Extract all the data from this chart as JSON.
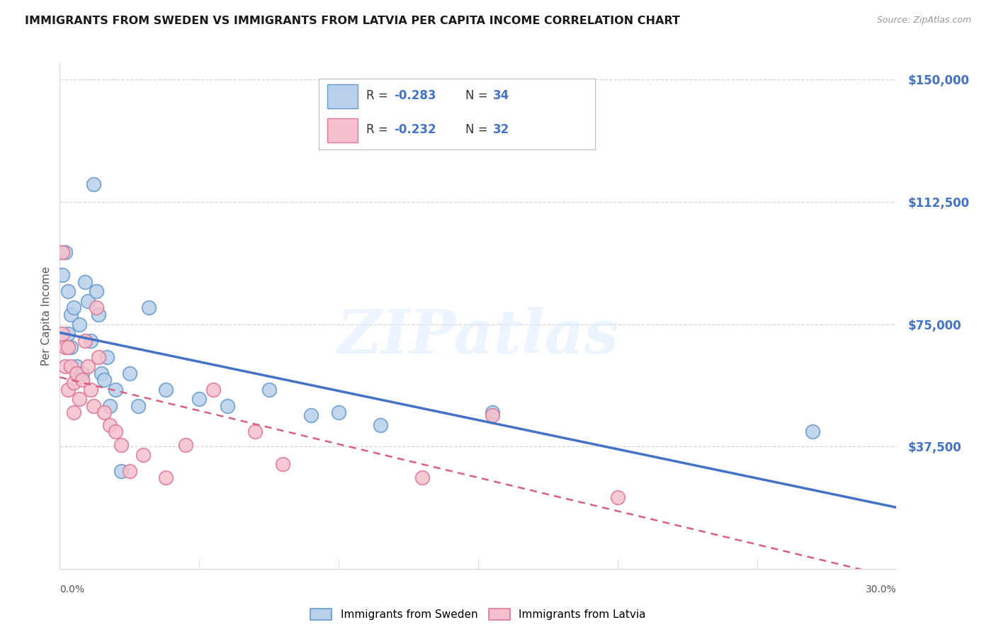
{
  "title": "IMMIGRANTS FROM SWEDEN VS IMMIGRANTS FROM LATVIA PER CAPITA INCOME CORRELATION CHART",
  "source": "Source: ZipAtlas.com",
  "ylabel": "Per Capita Income",
  "yticks": [
    0,
    37500,
    75000,
    112500,
    150000
  ],
  "ytick_labels": [
    "",
    "$37,500",
    "$75,000",
    "$112,500",
    "$150,000"
  ],
  "xmin": 0.0,
  "xmax": 0.3,
  "ymin": 0,
  "ymax": 155000,
  "sweden_face": "#b8d0ea",
  "sweden_edge": "#6699cc",
  "latvia_face": "#f5c0cc",
  "latvia_edge": "#dd7799",
  "sweden_line_color": "#4472c4",
  "latvia_line_color": "#d9607a",
  "text_color_blue": "#4472c4",
  "text_color_dark": "#333333",
  "grid_color": "#d5d5d5",
  "legend_label_sweden": "Immigrants from Sweden",
  "legend_label_latvia": "Immigrants from Latvia",
  "watermark": "ZIPatlas",
  "sweden_x": [
    0.001,
    0.002,
    0.003,
    0.003,
    0.004,
    0.004,
    0.005,
    0.006,
    0.007,
    0.008,
    0.009,
    0.01,
    0.011,
    0.012,
    0.013,
    0.014,
    0.015,
    0.016,
    0.017,
    0.018,
    0.02,
    0.022,
    0.025,
    0.028,
    0.032,
    0.038,
    0.05,
    0.06,
    0.075,
    0.09,
    0.1,
    0.115,
    0.155,
    0.27
  ],
  "sweden_y": [
    90000,
    97000,
    85000,
    72000,
    78000,
    68000,
    80000,
    62000,
    75000,
    60000,
    88000,
    82000,
    70000,
    118000,
    85000,
    78000,
    60000,
    58000,
    65000,
    50000,
    55000,
    30000,
    60000,
    50000,
    80000,
    55000,
    52000,
    50000,
    55000,
    47000,
    48000,
    44000,
    48000,
    42000
  ],
  "latvia_x": [
    0.001,
    0.001,
    0.002,
    0.002,
    0.003,
    0.003,
    0.004,
    0.005,
    0.005,
    0.006,
    0.007,
    0.008,
    0.009,
    0.01,
    0.011,
    0.012,
    0.013,
    0.014,
    0.016,
    0.018,
    0.02,
    0.022,
    0.025,
    0.03,
    0.038,
    0.045,
    0.055,
    0.07,
    0.08,
    0.13,
    0.155,
    0.2
  ],
  "latvia_y": [
    97000,
    72000,
    68000,
    62000,
    68000,
    55000,
    62000,
    57000,
    48000,
    60000,
    52000,
    58000,
    70000,
    62000,
    55000,
    50000,
    80000,
    65000,
    48000,
    44000,
    42000,
    38000,
    30000,
    35000,
    28000,
    38000,
    55000,
    42000,
    32000,
    28000,
    47000,
    22000
  ]
}
